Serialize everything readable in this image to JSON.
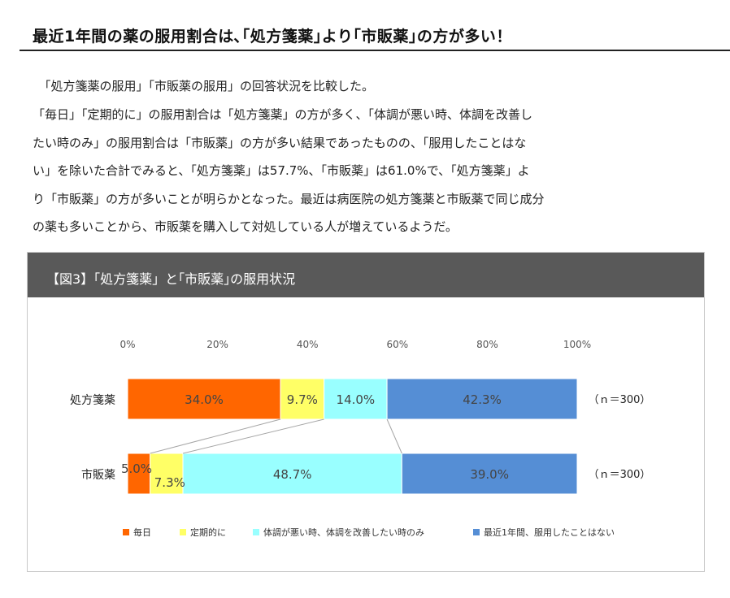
{
  "headline": "最近1年間の薬の服用割合は､｢処方箋薬｣より｢市販薬｣の方が多い！",
  "body_lines": [
    "　「処方箋薬の服用」「市販薬の服用」の回答状況を比較した。",
    "「毎日」「定期的に」の服用割合は「処方箋薬」の方が多く、「体調が悪い時、体調を改善し",
    "たい時のみ」の服用割合は「市販薬」の方が多い結果であったものの、「服用したことはな",
    "い」を除いた合計でみると、「処方箋薬」は57.7%、「市販薬」は61.0%で、「処方箋薬」よ",
    "り「市販薬」の方が多いことが明らかとなった。最近は病医院の処方箋薬と市販薬で同じ成分",
    "の薬も多いことから、市販薬を購入して対処している人が増えているようだ。"
  ],
  "figure_title": "【図3】「処方箋薬」と｢市販薬｣の服用状況",
  "chart_data": {
    "type": "bar",
    "orientation": "horizontal",
    "stacked": "100%",
    "x_ticks": [
      "0%",
      "20%",
      "40%",
      "60%",
      "80%",
      "100%"
    ],
    "xlim": [
      0,
      100
    ],
    "categories": [
      "処方箋薬",
      "市販薬"
    ],
    "n_labels": [
      "（ｎ＝300）",
      "（ｎ＝300）"
    ],
    "series": [
      {
        "name": "毎日",
        "color": "#ff6600",
        "values": [
          34.0,
          5.0
        ],
        "labels": [
          "34.0%",
          "5.0%"
        ]
      },
      {
        "name": "定期的に",
        "color": "#ffff66",
        "values": [
          9.7,
          7.3
        ],
        "labels": [
          "9.7%",
          "7.3%"
        ]
      },
      {
        "name": "体調が悪い時、体調を改善したい時のみ",
        "color": "#99ffff",
        "values": [
          14.0,
          48.7
        ],
        "labels": [
          "14.0%",
          "48.7%"
        ]
      },
      {
        "name": "最近1年間、服用したことはない",
        "color": "#558ed5",
        "values": [
          42.3,
          39.0
        ],
        "labels": [
          "42.3%",
          "39.0%"
        ]
      }
    ],
    "connector_lines": true,
    "legend_position": "bottom",
    "grid": false
  }
}
